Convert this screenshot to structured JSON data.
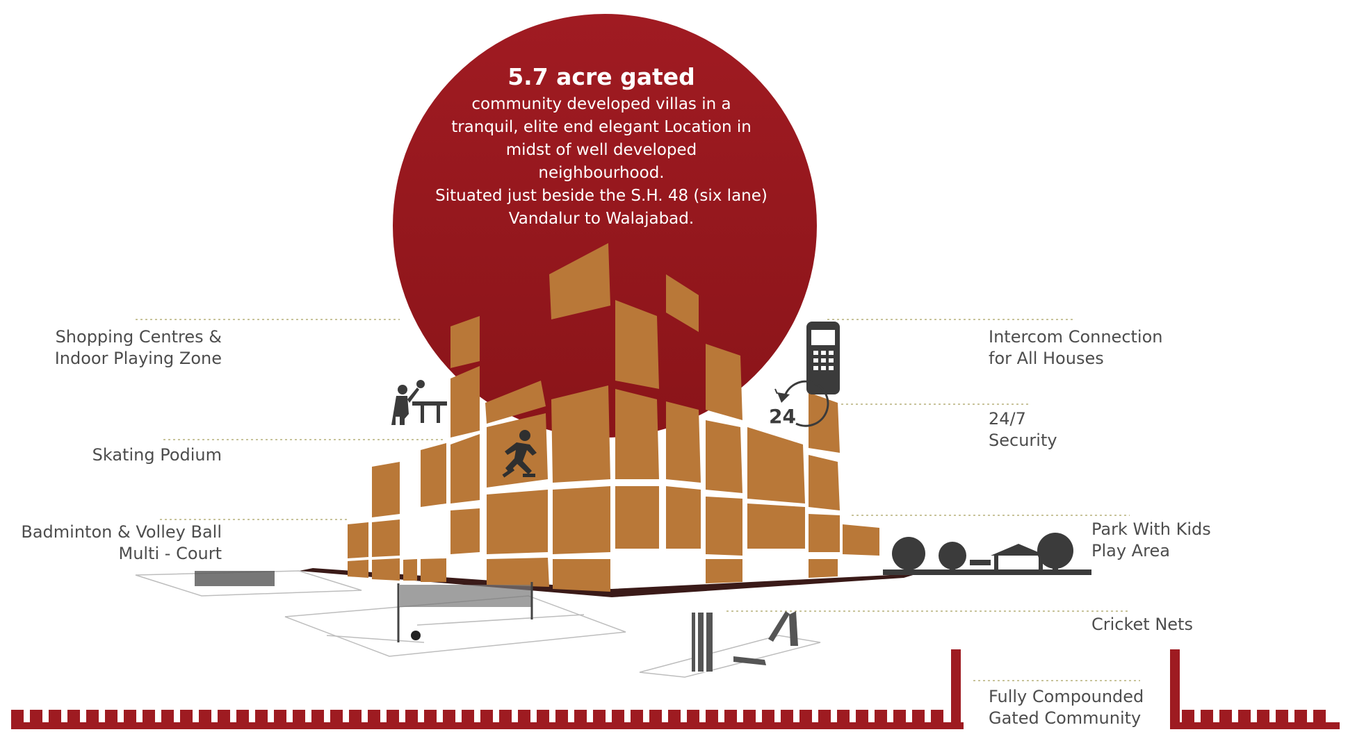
{
  "headline": {
    "title": "5.7 acre gated",
    "lines": [
      "community developed villas in a",
      "tranquil, elite end elegant Location in",
      "midst of well developed",
      "neighbourhood.",
      "Situated just beside the S.H. 48 (six lane)",
      "Vandalur to Walajabad."
    ]
  },
  "features": {
    "shopping": [
      "Shopping Centres &",
      "Indoor Playing Zone"
    ],
    "skating": [
      "Skating Podium"
    ],
    "badminton": [
      "Badminton & Volley Ball",
      "Multi - Court"
    ],
    "intercom": [
      "Intercom Connection",
      "for All Houses"
    ],
    "security": [
      "24/7",
      "Security"
    ],
    "park": [
      "Park With Kids",
      "Play Area"
    ],
    "cricket": [
      "Cricket Nets"
    ],
    "compound": [
      "Fully Compounded",
      "Gated Community"
    ]
  },
  "icons": {
    "clock_number": "24"
  },
  "colors": {
    "circle": "#9e1b21",
    "blocks": "#b97838",
    "text": "#4d4d4d",
    "icons": "#3b3b3b",
    "leader": "#c8c39a"
  }
}
